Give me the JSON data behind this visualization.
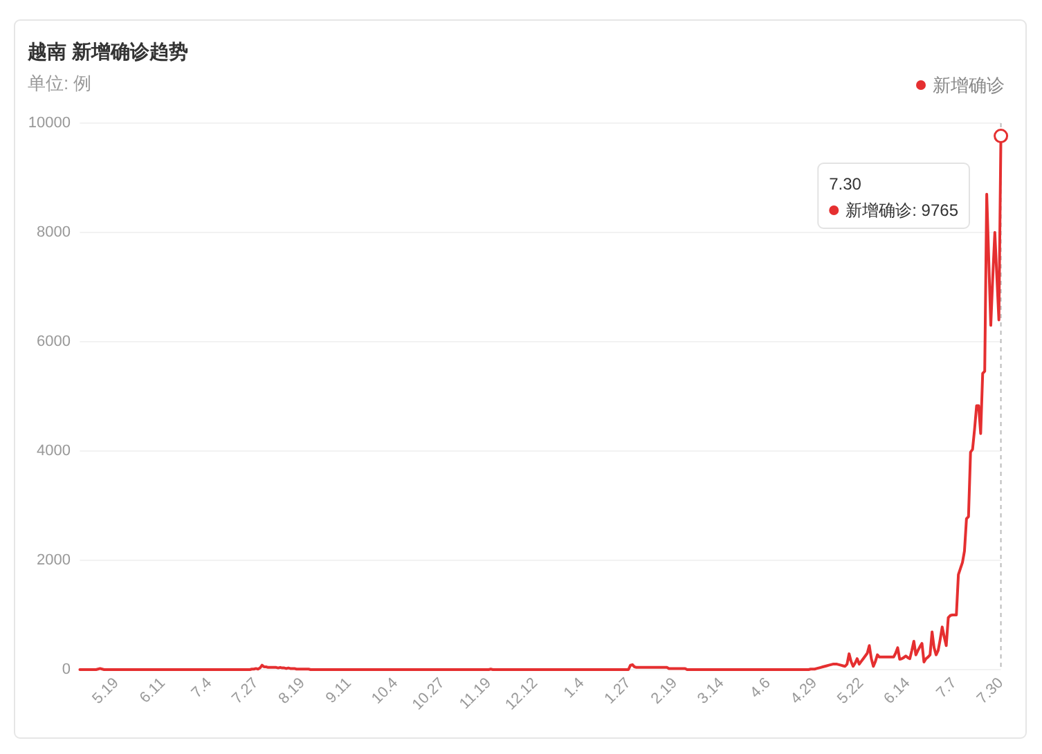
{
  "chart_data": {
    "type": "line",
    "title": "越南 新增确诊趋势",
    "subtitle": "单位: 例",
    "categories": [
      null,
      null,
      null,
      null,
      null,
      null,
      null,
      null,
      null,
      null,
      null,
      null,
      null,
      null,
      null,
      null,
      null,
      null,
      "5.19",
      null,
      null,
      null,
      null,
      null,
      null,
      null,
      null,
      null,
      null,
      null,
      null,
      null,
      null,
      null,
      null,
      null,
      null,
      null,
      null,
      null,
      null,
      "6.11",
      null,
      null,
      null,
      null,
      null,
      null,
      null,
      null,
      null,
      null,
      null,
      null,
      null,
      null,
      null,
      null,
      null,
      null,
      null,
      null,
      null,
      null,
      "7.4",
      null,
      null,
      null,
      null,
      null,
      null,
      null,
      null,
      null,
      null,
      null,
      null,
      null,
      null,
      null,
      null,
      null,
      null,
      null,
      null,
      null,
      null,
      "7.27",
      null,
      null,
      null,
      null,
      null,
      null,
      null,
      null,
      null,
      null,
      null,
      null,
      null,
      null,
      null,
      null,
      null,
      null,
      null,
      null,
      null,
      null,
      "8.19",
      null,
      null,
      null,
      null,
      null,
      null,
      null,
      null,
      null,
      null,
      null,
      null,
      null,
      null,
      null,
      null,
      null,
      null,
      null,
      null,
      null,
      null,
      "9.11",
      null,
      null,
      null,
      null,
      null,
      null,
      null,
      null,
      null,
      null,
      null,
      null,
      null,
      null,
      null,
      null,
      null,
      null,
      null,
      null,
      null,
      null,
      "10.4",
      null,
      null,
      null,
      null,
      null,
      null,
      null,
      null,
      null,
      null,
      null,
      null,
      null,
      null,
      null,
      null,
      null,
      null,
      null,
      null,
      null,
      null,
      "10.27",
      null,
      null,
      null,
      null,
      null,
      null,
      null,
      null,
      null,
      null,
      null,
      null,
      null,
      null,
      null,
      null,
      null,
      null,
      null,
      null,
      null,
      null,
      "11.19",
      null,
      null,
      null,
      null,
      null,
      null,
      null,
      null,
      null,
      null,
      null,
      null,
      null,
      null,
      null,
      null,
      null,
      null,
      null,
      null,
      null,
      null,
      "12.12",
      null,
      null,
      null,
      null,
      null,
      null,
      null,
      null,
      null,
      null,
      null,
      null,
      null,
      null,
      null,
      null,
      null,
      null,
      null,
      null,
      null,
      null,
      "1.4",
      null,
      null,
      null,
      null,
      null,
      null,
      null,
      null,
      null,
      null,
      null,
      null,
      null,
      null,
      null,
      null,
      null,
      null,
      null,
      null,
      null,
      null,
      "1.27",
      null,
      null,
      null,
      null,
      null,
      null,
      null,
      null,
      null,
      null,
      null,
      null,
      null,
      null,
      null,
      null,
      null,
      null,
      null,
      null,
      null,
      null,
      "2.19",
      null,
      null,
      null,
      null,
      null,
      null,
      null,
      null,
      null,
      null,
      null,
      null,
      null,
      null,
      null,
      null,
      null,
      null,
      null,
      null,
      null,
      null,
      "3.14",
      null,
      null,
      null,
      null,
      null,
      null,
      null,
      null,
      null,
      null,
      null,
      null,
      null,
      null,
      null,
      null,
      null,
      null,
      null,
      null,
      null,
      null,
      "4.6",
      null,
      null,
      null,
      null,
      null,
      null,
      null,
      null,
      null,
      null,
      null,
      null,
      null,
      null,
      null,
      null,
      null,
      null,
      null,
      null,
      null,
      null,
      "4.29",
      null,
      null,
      null,
      null,
      null,
      null,
      null,
      null,
      null,
      null,
      null,
      null,
      null,
      null,
      null,
      null,
      null,
      null,
      null,
      null,
      null,
      null,
      "5.22",
      null,
      null,
      null,
      null,
      null,
      null,
      null,
      null,
      null,
      null,
      null,
      null,
      null,
      null,
      null,
      null,
      null,
      null,
      null,
      null,
      null,
      null,
      "6.14",
      null,
      null,
      null,
      null,
      null,
      null,
      null,
      null,
      null,
      null,
      null,
      null,
      null,
      null,
      null,
      null,
      null,
      null,
      null,
      null,
      null,
      null,
      "7.7",
      null,
      null,
      null,
      null,
      null,
      null,
      null,
      null,
      null,
      null,
      null,
      null,
      null,
      null,
      null,
      null,
      null,
      null,
      null,
      null,
      null,
      null,
      "7.30"
    ],
    "series": [
      {
        "name": "新增确诊",
        "color": "#e52f30",
        "values": [
          0,
          0,
          0,
          0,
          0,
          0,
          0,
          0,
          0,
          10,
          20,
          10,
          0,
          0,
          0,
          0,
          0,
          0,
          0,
          0,
          0,
          0,
          0,
          0,
          0,
          0,
          0,
          0,
          0,
          0,
          0,
          0,
          0,
          0,
          0,
          0,
          0,
          0,
          0,
          0,
          0,
          0,
          0,
          0,
          0,
          0,
          0,
          0,
          0,
          0,
          0,
          0,
          0,
          0,
          0,
          0,
          0,
          0,
          0,
          0,
          0,
          0,
          0,
          0,
          0,
          0,
          0,
          0,
          0,
          0,
          0,
          0,
          0,
          0,
          0,
          0,
          0,
          0,
          0,
          0,
          0,
          0,
          0,
          0,
          0,
          10,
          10,
          20,
          10,
          30,
          80,
          50,
          50,
          40,
          40,
          40,
          40,
          40,
          30,
          40,
          30,
          30,
          20,
          30,
          20,
          20,
          20,
          10,
          10,
          10,
          10,
          10,
          10,
          10,
          0,
          0,
          0,
          0,
          0,
          0,
          0,
          0,
          0,
          0,
          0,
          0,
          0,
          0,
          0,
          0,
          0,
          0,
          0,
          0,
          0,
          0,
          0,
          0,
          0,
          0,
          0,
          0,
          0,
          0,
          0,
          0,
          0,
          0,
          0,
          0,
          0,
          0,
          0,
          0,
          0,
          0,
          0,
          0,
          0,
          0,
          0,
          0,
          0,
          0,
          0,
          0,
          0,
          0,
          0,
          0,
          0,
          0,
          0,
          0,
          0,
          0,
          0,
          0,
          0,
          0,
          0,
          0,
          0,
          0,
          0,
          0,
          0,
          0,
          0,
          0,
          0,
          0,
          0,
          0,
          0,
          0,
          0,
          0,
          0,
          0,
          0,
          0,
          0,
          10,
          0,
          0,
          0,
          0,
          0,
          0,
          0,
          0,
          0,
          0,
          0,
          0,
          0,
          0,
          0,
          0,
          0,
          0,
          0,
          0,
          0,
          0,
          0,
          0,
          0,
          0,
          0,
          0,
          0,
          0,
          0,
          0,
          0,
          0,
          0,
          0,
          0,
          0,
          0,
          0,
          0,
          0,
          0,
          0,
          0,
          0,
          0,
          0,
          0,
          0,
          0,
          0,
          0,
          0,
          0,
          0,
          0,
          0,
          0,
          0,
          0,
          0,
          0,
          0,
          0,
          0,
          0,
          0,
          80,
          90,
          50,
          40,
          40,
          40,
          40,
          40,
          40,
          40,
          40,
          40,
          40,
          40,
          40,
          40,
          40,
          40,
          40,
          20,
          20,
          20,
          20,
          20,
          20,
          20,
          20,
          20,
          0,
          0,
          0,
          0,
          0,
          0,
          0,
          0,
          0,
          0,
          0,
          0,
          0,
          0,
          0,
          0,
          0,
          0,
          0,
          0,
          0,
          0,
          0,
          0,
          0,
          0,
          0,
          0,
          0,
          0,
          0,
          0,
          0,
          0,
          0,
          0,
          0,
          0,
          0,
          0,
          0,
          0,
          0,
          0,
          0,
          0,
          0,
          0,
          0,
          0,
          0,
          0,
          0,
          0,
          0,
          0,
          0,
          0,
          0,
          0,
          0,
          10,
          10,
          10,
          20,
          30,
          40,
          50,
          60,
          70,
          80,
          90,
          100,
          100,
          100,
          90,
          80,
          70,
          60,
          100,
          290,
          150,
          60,
          120,
          200,
          100,
          150,
          200,
          250,
          300,
          440,
          200,
          60,
          150,
          270,
          230,
          230,
          230,
          230,
          230,
          230,
          230,
          230,
          300,
          400,
          190,
          200,
          220,
          250,
          220,
          200,
          350,
          520,
          270,
          350,
          420,
          480,
          140,
          200,
          230,
          270,
          690,
          400,
          270,
          350,
          550,
          780,
          600,
          440,
          950,
          990,
          1000,
          1000,
          1000,
          1740,
          1850,
          1960,
          2170,
          2760,
          2800,
          3980,
          4030,
          4400,
          4830,
          4830,
          4320,
          5420,
          5460,
          8700,
          7500,
          6300,
          7200,
          8000,
          7200,
          6400,
          9765
        ]
      },
      {
        "type": "scatter",
        "color": "#e52f30",
        "x": [
          "7.30"
        ],
        "values": [
          9765
        ]
      }
    ],
    "ylim": [
      0,
      10000
    ],
    "yticks": [
      0,
      2000,
      4000,
      6000,
      8000,
      10000
    ],
    "grid": "y",
    "legend": "top right",
    "ref_lines": [
      {
        "axis": "x",
        "value": "7.30",
        "color": "#bbbbbb",
        "line_style": "dashed"
      }
    ],
    "annotations": [
      "新增确诊: 9765"
    ]
  }
}
